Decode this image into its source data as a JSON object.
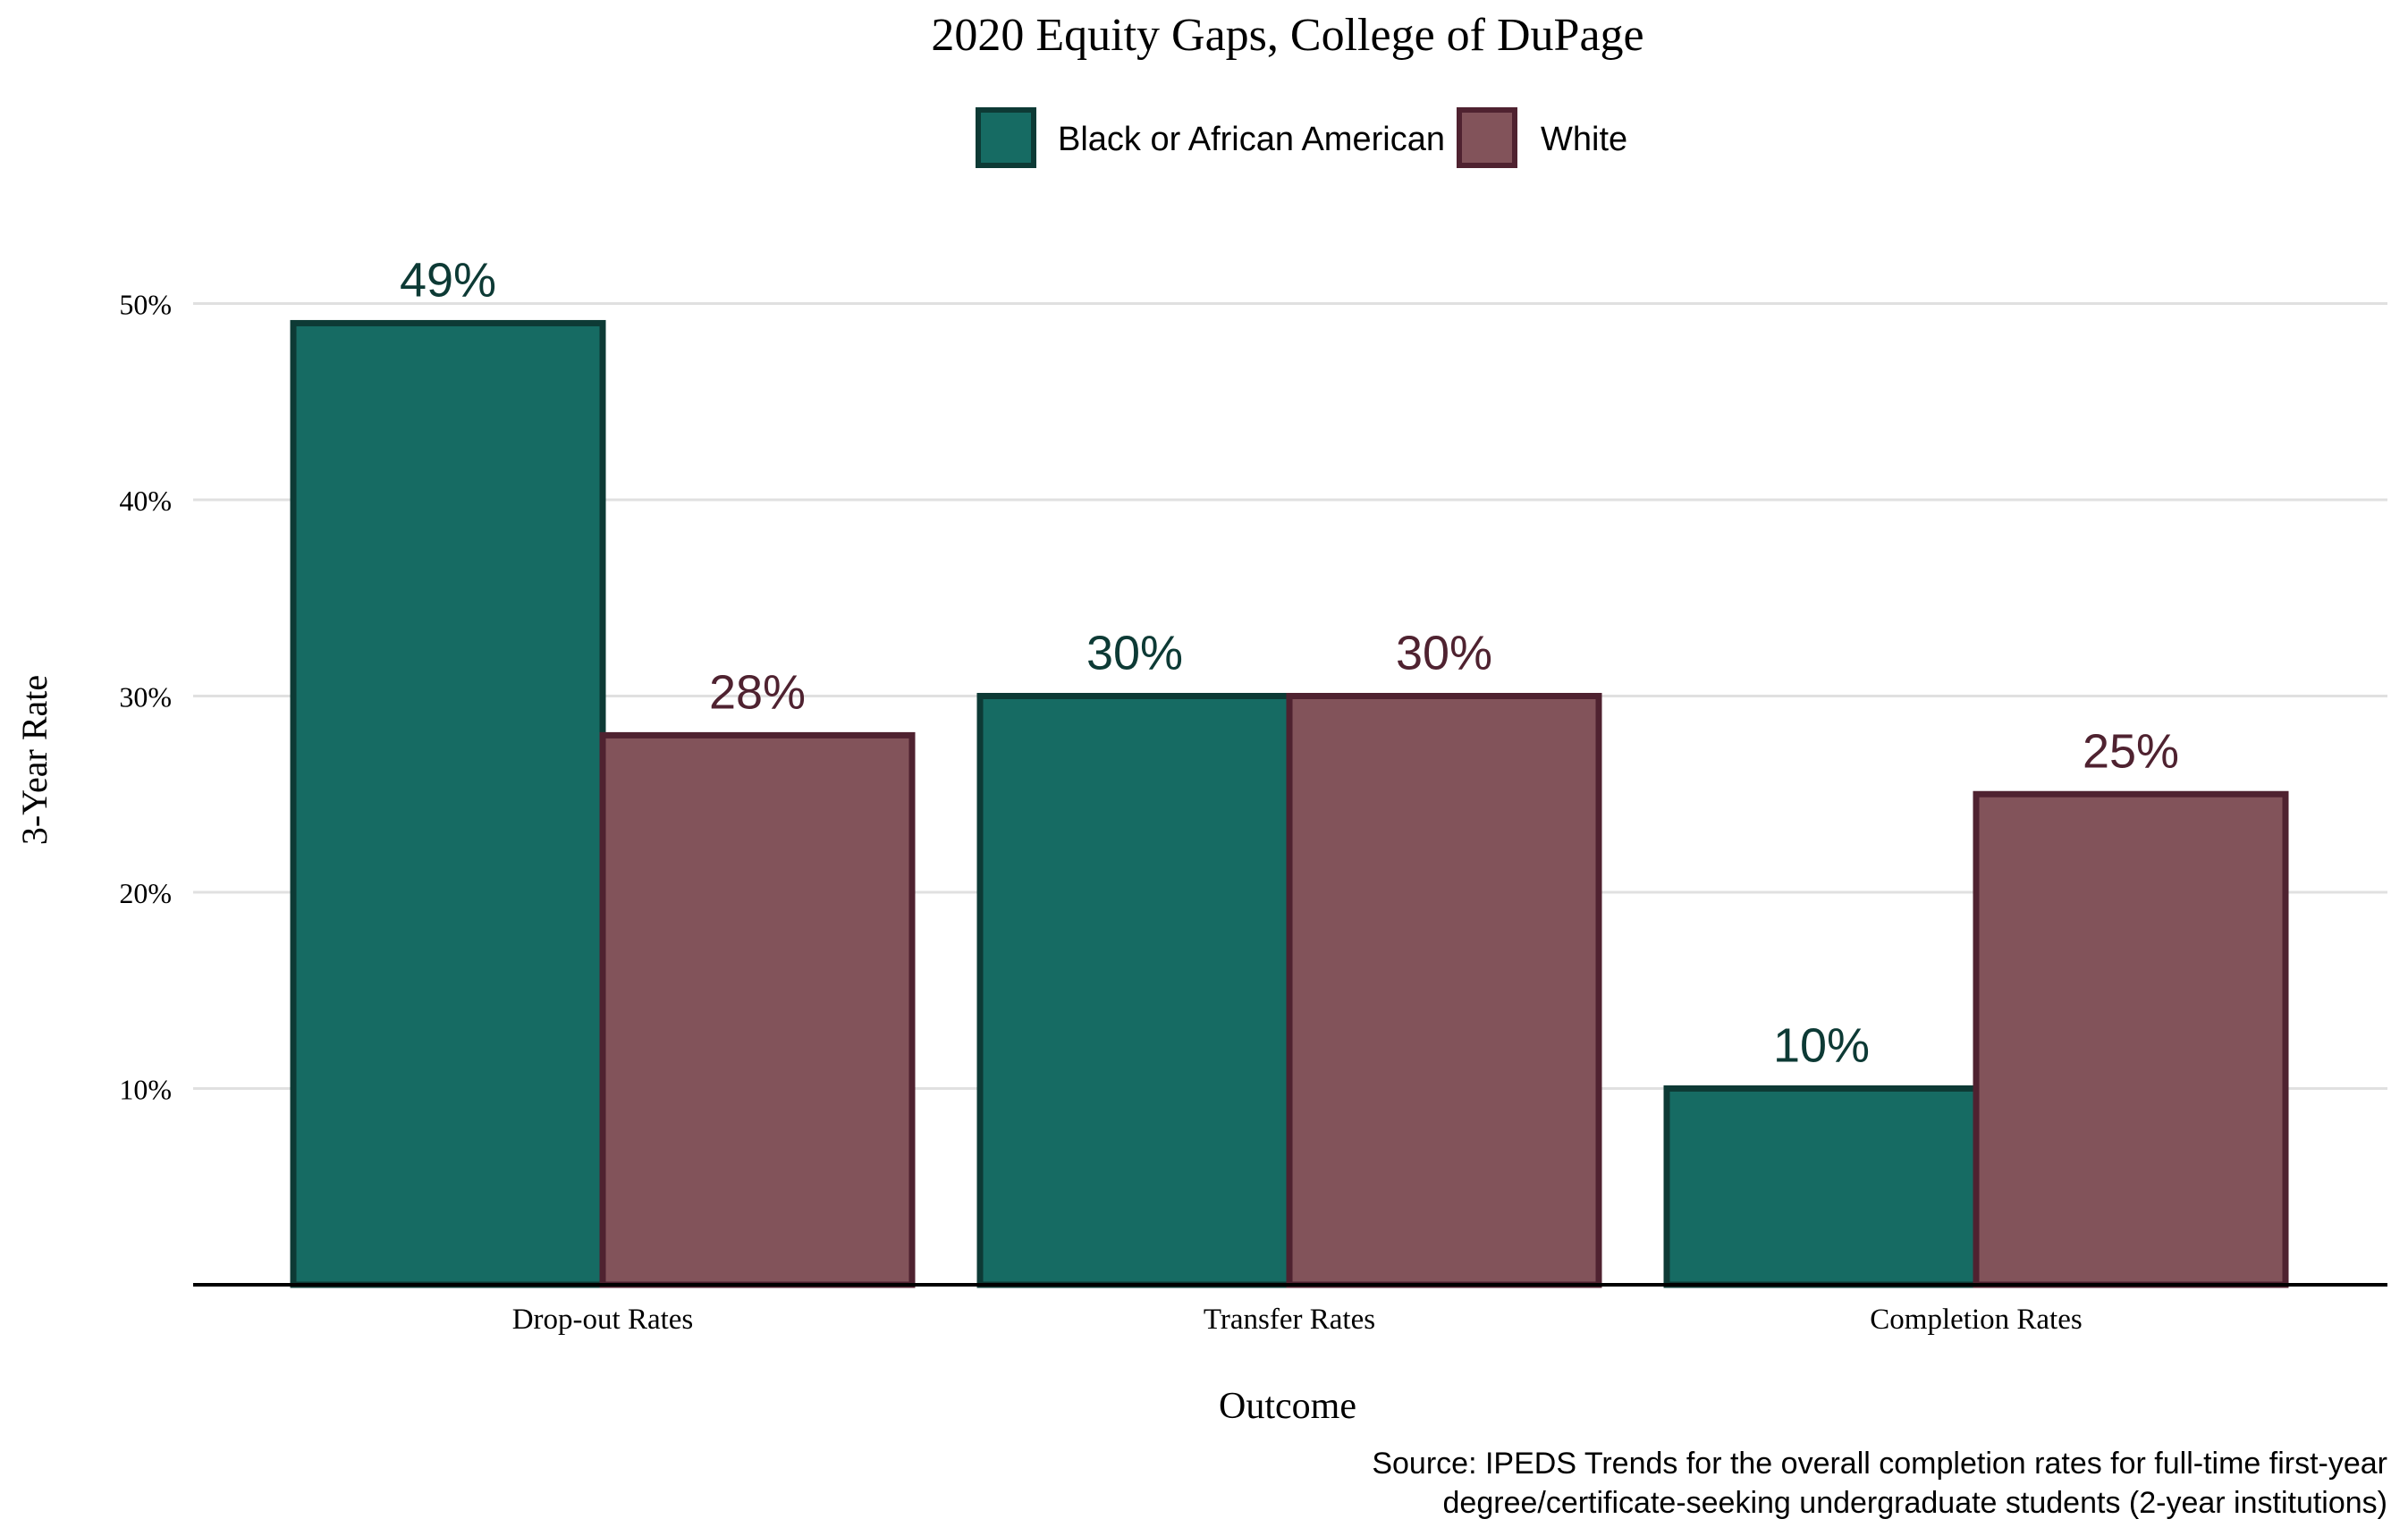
{
  "chart_data": {
    "type": "bar",
    "title": "2020 Equity Gaps, College of DuPage",
    "xlabel": "Outcome",
    "ylabel": "3-Year Rate",
    "categories": [
      "Drop-out Rates",
      "Transfer Rates",
      "Completion Rates"
    ],
    "series": [
      {
        "name": "Black or African American",
        "values": [
          49,
          30,
          10
        ],
        "labels": [
          "49%",
          "30%",
          "10%"
        ],
        "fill": "#166b63",
        "stroke": "#0d3a35",
        "label_color": "#0d3a35"
      },
      {
        "name": "White",
        "values": [
          28,
          30,
          25
        ],
        "labels": [
          "28%",
          "30%",
          "25%"
        ],
        "fill": "#82535a",
        "stroke": "#4f2230",
        "label_color": "#4f2230"
      }
    ],
    "yticks": [
      10,
      20,
      30,
      40,
      50
    ],
    "ytick_labels": [
      "10%",
      "20%",
      "30%",
      "40%",
      "50%"
    ],
    "ylim": [
      0,
      50
    ],
    "grid": true,
    "legend_position": "top",
    "caption_lines": [
      "Source: IPEDS Trends for the overall completion rates for full-time first-year",
      "degree/certificate-seeking undergraduate students (2-year institutions)"
    ]
  }
}
